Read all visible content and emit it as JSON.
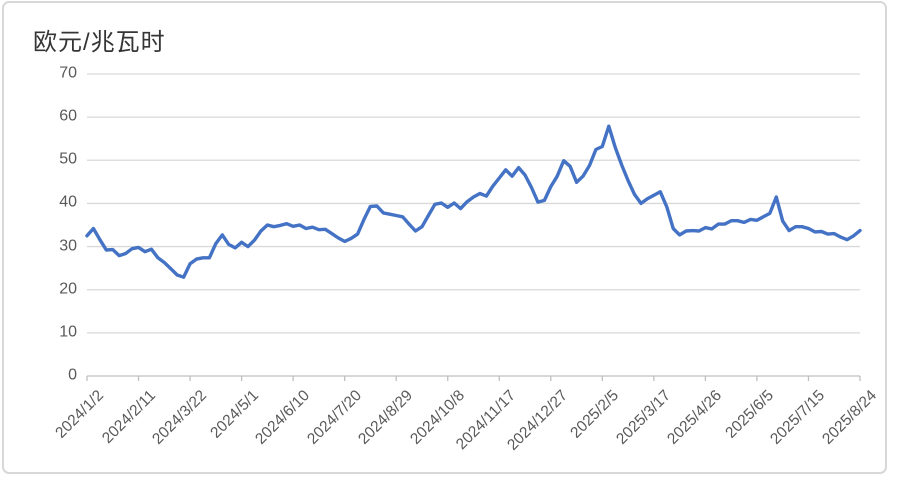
{
  "chart": {
    "title": "欧元/兆瓦时",
    "colors": {
      "line": "#4472C4",
      "grid": "#D9D9D9",
      "axis": "#BFBFBF",
      "tick_label": "#595959",
      "title": "#353535",
      "card_border": "#D8D8D8",
      "background": "#FFFFFF"
    }
  },
  "chart_data": {
    "type": "line",
    "title": "欧元/兆瓦时",
    "xlabel": "",
    "ylabel": "",
    "grid": true,
    "legend": false,
    "ylim": [
      0,
      70
    ],
    "y_ticks": [
      0,
      10,
      20,
      30,
      40,
      50,
      60,
      70
    ],
    "x_range": [
      "2024/1/2",
      "2025/8/24"
    ],
    "x_tick_labels": [
      "2024/1/2",
      "2024/2/11",
      "2024/3/22",
      "2024/5/1",
      "2024/6/10",
      "2024/7/20",
      "2024/8/29",
      "2024/10/8",
      "2024/11/17",
      "2024/12/27",
      "2025/2/5",
      "2025/3/17",
      "2025/4/26",
      "2025/6/5",
      "2025/7/15",
      "2025/8/24"
    ],
    "sample_interval_days": 5,
    "values": [
      32.5,
      34.2,
      31.6,
      29.2,
      29.3,
      27.9,
      28.4,
      29.5,
      29.8,
      28.8,
      29.4,
      27.4,
      26.3,
      24.9,
      23.4,
      22.9,
      26.0,
      27.1,
      27.4,
      27.4,
      30.7,
      32.7,
      30.5,
      29.7,
      31.0,
      30.0,
      31.5,
      33.6,
      35.0,
      34.6,
      34.9,
      35.3,
      34.7,
      35.0,
      34.2,
      34.5,
      33.9,
      34.0,
      33.0,
      32.0,
      31.2,
      31.9,
      32.9,
      36.3,
      39.3,
      39.4,
      37.8,
      37.5,
      37.2,
      36.9,
      35.2,
      33.6,
      34.6,
      37.2,
      39.8,
      40.1,
      39.1,
      40.1,
      38.8,
      40.4,
      41.5,
      42.3,
      41.7,
      44.0,
      45.9,
      47.8,
      46.3,
      48.3,
      46.6,
      43.7,
      40.3,
      40.7,
      43.9,
      46.3,
      49.9,
      48.6,
      44.9,
      46.3,
      48.8,
      52.5,
      53.2,
      57.9,
      53.0,
      48.9,
      45.3,
      42.1,
      40.0,
      41.1,
      41.9,
      42.7,
      39.2,
      34.2,
      32.7,
      33.6,
      33.7,
      33.6,
      34.4,
      34.1,
      35.2,
      35.2,
      36.0,
      36.0,
      35.6,
      36.3,
      36.1,
      36.9,
      37.7,
      41.5,
      35.9,
      33.7,
      34.6,
      34.6,
      34.2,
      33.4,
      33.5,
      32.9,
      33.0,
      32.2,
      31.6,
      32.5,
      33.7
    ]
  }
}
